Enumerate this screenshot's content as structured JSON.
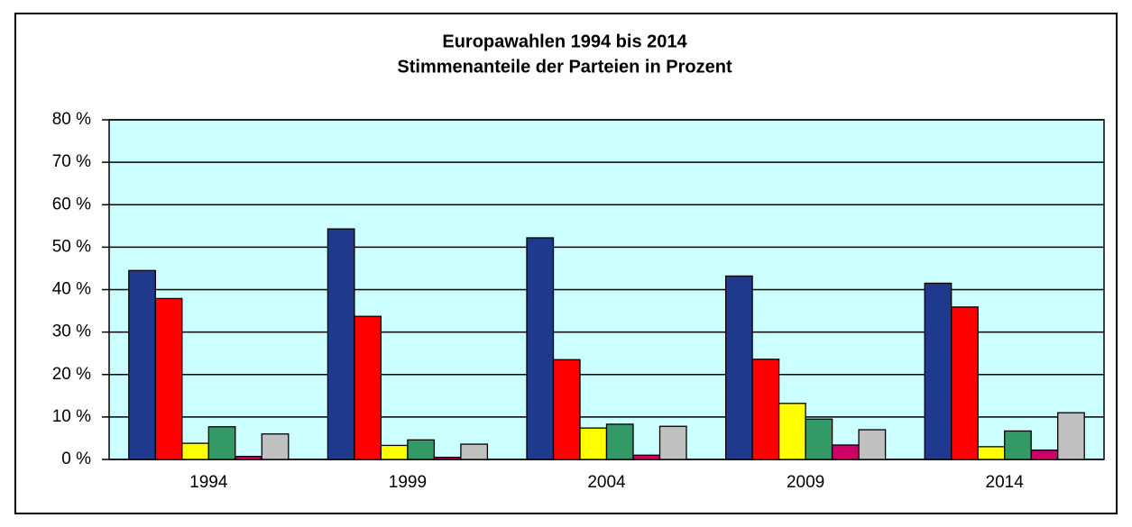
{
  "chart_data": {
    "type": "bar",
    "title": "Europawahlen 1994 bis 2014",
    "subtitle": "Stimmenanteile der Parteien in Prozent",
    "categories": [
      "1994",
      "1999",
      "2004",
      "2009",
      "2014"
    ],
    "series": [
      {
        "color": "#1f3a8c",
        "values": [
          44.5,
          54.3,
          52.2,
          43.2,
          41.5
        ]
      },
      {
        "color": "#ff0000",
        "values": [
          37.9,
          33.7,
          23.5,
          23.6,
          35.9
        ]
      },
      {
        "color": "#ffff00",
        "values": [
          3.8,
          3.3,
          7.4,
          13.2,
          3.0
        ]
      },
      {
        "color": "#339966",
        "values": [
          7.7,
          4.6,
          8.3,
          9.5,
          6.7
        ]
      },
      {
        "color": "#cc0066",
        "values": [
          0.7,
          0.5,
          1.0,
          3.4,
          2.2
        ]
      },
      {
        "color": "#c0c0c0",
        "values": [
          6.0,
          3.6,
          7.8,
          7.0,
          11.0
        ]
      }
    ],
    "ylim": [
      0,
      80
    ],
    "yticks": [
      {
        "value": 0,
        "label": "0 %"
      },
      {
        "value": 10,
        "label": "10 %"
      },
      {
        "value": 20,
        "label": "20 %"
      },
      {
        "value": 30,
        "label": "30 %"
      },
      {
        "value": 40,
        "label": "40 %"
      },
      {
        "value": 50,
        "label": "50 %"
      },
      {
        "value": 60,
        "label": "60 %"
      },
      {
        "value": 70,
        "label": "70 %"
      },
      {
        "value": 80,
        "label": "80 %"
      }
    ],
    "grid": true,
    "plot_background": "#ccffff"
  }
}
